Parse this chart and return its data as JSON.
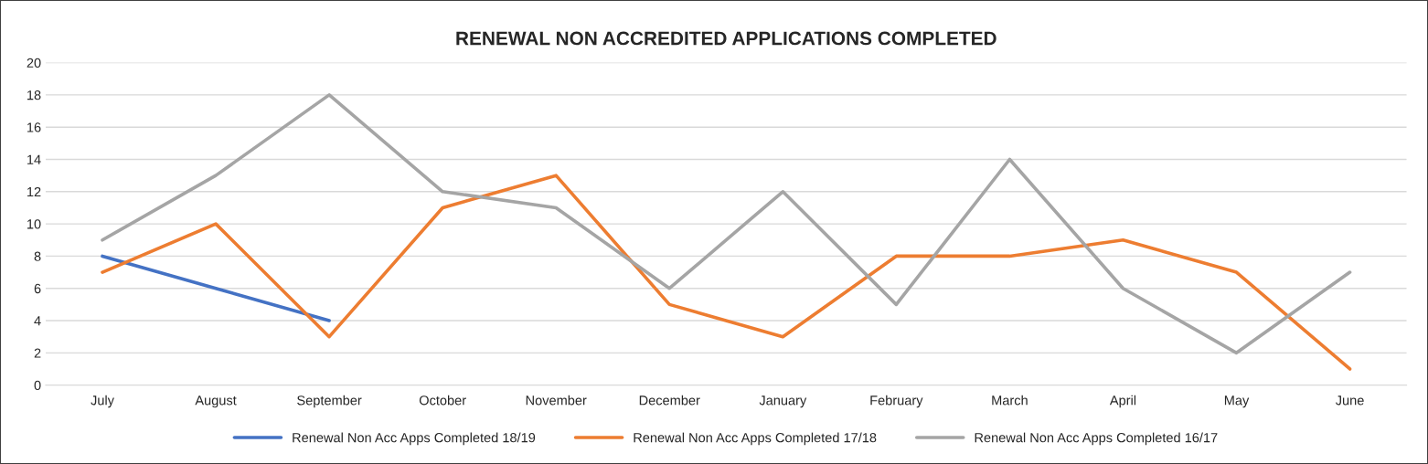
{
  "chart_data": {
    "type": "line",
    "title": "RENEWAL NON ACCREDITED APPLICATIONS COMPLETED",
    "categories": [
      "July",
      "August",
      "September",
      "October",
      "November",
      "December",
      "January",
      "February",
      "March",
      "April",
      "May",
      "June"
    ],
    "series": [
      {
        "name": "Renewal Non Acc Apps Completed 18/19",
        "color": "#4472c4",
        "values": [
          8,
          6,
          4,
          null,
          null,
          null,
          null,
          null,
          null,
          null,
          null,
          null
        ]
      },
      {
        "name": "Renewal Non Acc Apps Completed 17/18",
        "color": "#ed7d31",
        "values": [
          7,
          10,
          3,
          11,
          13,
          5,
          3,
          8,
          8,
          9,
          7,
          1
        ]
      },
      {
        "name": "Renewal Non Acc Apps Completed 16/17",
        "color": "#a5a5a5",
        "values": [
          9,
          13,
          18,
          12,
          11,
          6,
          12,
          5,
          14,
          6,
          2,
          7
        ]
      }
    ],
    "ylim": [
      0,
      20
    ],
    "yticks": [
      0,
      2,
      4,
      6,
      8,
      10,
      12,
      14,
      16,
      18,
      20
    ],
    "grid": "y",
    "legend": "bottom",
    "marker": "none",
    "line_style": "solid"
  }
}
